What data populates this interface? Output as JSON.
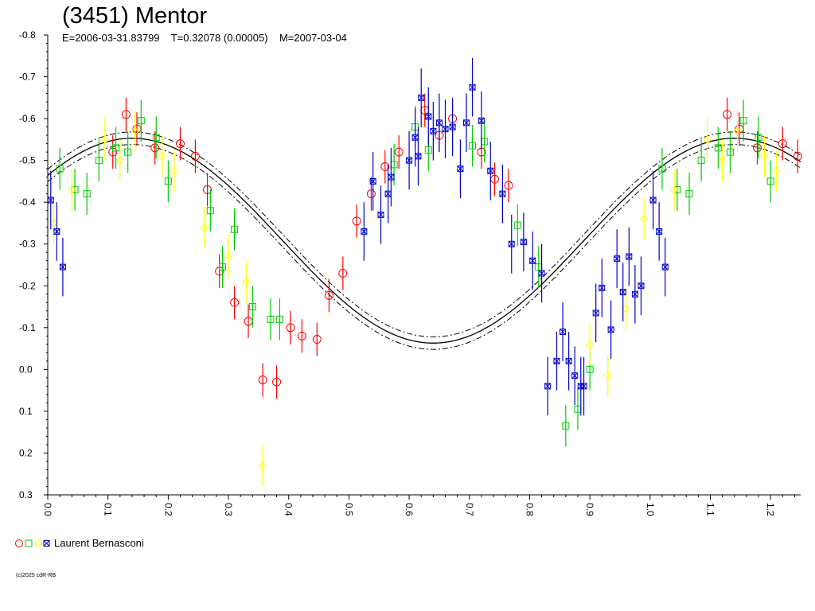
{
  "chart_data": {
    "type": "scatter",
    "title": "(3451) Mentor",
    "subtitle": "E=2006-03-31.83799    T=0.32078 (0.00005)    M=2007-03-04",
    "x_ticks": [
      "0.0",
      "0.1",
      "0.2",
      "0.3",
      "0.4",
      "0.5",
      "0.6",
      "0.7",
      "0.8",
      "0.9",
      "1.0",
      "1.1",
      "1.2"
    ],
    "y_ticks": [
      "-0.8",
      "-0.7",
      "-0.6",
      "-0.5",
      "-0.4",
      "-0.3",
      "-0.2",
      "-0.1",
      "0.0",
      "0.1",
      "0.2",
      "0.3"
    ],
    "xlim": [
      0.0,
      1.25
    ],
    "ylim": [
      -0.8,
      0.3
    ],
    "y_inverted": true,
    "fit": {
      "mean": -0.308,
      "amplitude": 0.245,
      "phase_of_max": 0.14,
      "band": 0.015
    },
    "series": [
      {
        "color": "#ff0000",
        "marker": "circle",
        "points": [
          [
            0.108,
            -0.52,
            0.04
          ],
          [
            0.13,
            -0.61,
            0.04
          ],
          [
            0.148,
            -0.575,
            0.04
          ],
          [
            0.178,
            -0.53,
            0.04
          ],
          [
            0.22,
            -0.54,
            0.04
          ],
          [
            0.245,
            -0.51,
            0.04
          ],
          [
            0.265,
            -0.43,
            0.04
          ],
          [
            0.285,
            -0.235,
            0.04
          ],
          [
            0.31,
            -0.16,
            0.04
          ],
          [
            0.333,
            -0.115,
            0.04
          ],
          [
            0.357,
            0.025,
            0.04
          ],
          [
            0.38,
            0.03,
            0.04
          ],
          [
            0.403,
            -0.1,
            0.04
          ],
          [
            0.422,
            -0.08,
            0.04
          ],
          [
            0.447,
            -0.072,
            0.04
          ],
          [
            0.467,
            -0.177,
            0.04
          ],
          [
            0.49,
            -0.23,
            0.04
          ],
          [
            0.513,
            -0.355,
            0.04
          ],
          [
            0.537,
            -0.42,
            0.04
          ],
          [
            0.56,
            -0.485,
            0.04
          ],
          [
            0.583,
            -0.52,
            0.04
          ],
          [
            0.626,
            -0.62,
            0.04
          ],
          [
            0.65,
            -0.56,
            0.04
          ],
          [
            0.672,
            -0.6,
            0.04
          ],
          [
            0.72,
            -0.52,
            0.04
          ],
          [
            0.742,
            -0.455,
            0.04
          ],
          [
            0.765,
            -0.44,
            0.04
          ],
          [
            1.128,
            -0.61,
            0.04
          ],
          [
            1.148,
            -0.575,
            0.04
          ],
          [
            1.178,
            -0.53,
            0.04
          ],
          [
            1.22,
            -0.54,
            0.04
          ],
          [
            1.245,
            -0.51,
            0.04
          ]
        ]
      },
      {
        "color": "#00cc00",
        "marker": "square",
        "points": [
          [
            0.02,
            -0.48,
            0.05
          ],
          [
            0.045,
            -0.43,
            0.05
          ],
          [
            0.065,
            -0.42,
            0.05
          ],
          [
            0.085,
            -0.5,
            0.05
          ],
          [
            0.113,
            -0.53,
            0.05
          ],
          [
            0.133,
            -0.52,
            0.05
          ],
          [
            0.155,
            -0.595,
            0.05
          ],
          [
            0.18,
            -0.555,
            0.05
          ],
          [
            0.2,
            -0.45,
            0.05
          ],
          [
            0.27,
            -0.38,
            0.05
          ],
          [
            0.29,
            -0.245,
            0.05
          ],
          [
            0.31,
            -0.335,
            0.05
          ],
          [
            0.34,
            -0.15,
            0.05
          ],
          [
            0.37,
            -0.12,
            0.05
          ],
          [
            0.385,
            -0.12,
            0.05
          ],
          [
            0.575,
            -0.49,
            0.05
          ],
          [
            0.61,
            -0.58,
            0.05
          ],
          [
            0.632,
            -0.525,
            0.05
          ],
          [
            0.705,
            -0.535,
            0.05
          ],
          [
            0.725,
            -0.545,
            0.05
          ],
          [
            0.78,
            -0.345,
            0.05
          ],
          [
            0.815,
            -0.245,
            0.05
          ],
          [
            0.86,
            0.135,
            0.05
          ],
          [
            0.88,
            0.095,
            0.05
          ],
          [
            0.9,
            0.0,
            0.05
          ],
          [
            1.02,
            -0.48,
            0.05
          ],
          [
            1.045,
            -0.43,
            0.05
          ],
          [
            1.065,
            -0.42,
            0.05
          ],
          [
            1.085,
            -0.5,
            0.05
          ],
          [
            1.113,
            -0.53,
            0.05
          ],
          [
            1.133,
            -0.52,
            0.05
          ],
          [
            1.155,
            -0.595,
            0.05
          ],
          [
            1.18,
            -0.555,
            0.05
          ],
          [
            1.2,
            -0.45,
            0.05
          ]
        ]
      },
      {
        "color": "#ffff00",
        "marker": "diamond",
        "points": [
          [
            0.01,
            -0.35,
            0.05
          ],
          [
            0.04,
            -0.43,
            0.05
          ],
          [
            0.095,
            -0.55,
            0.05
          ],
          [
            0.12,
            -0.5,
            0.05
          ],
          [
            0.145,
            -0.57,
            0.05
          ],
          [
            0.19,
            -0.51,
            0.05
          ],
          [
            0.21,
            -0.475,
            0.05
          ],
          [
            0.26,
            -0.34,
            0.05
          ],
          [
            0.3,
            -0.27,
            0.05
          ],
          [
            0.33,
            -0.21,
            0.05
          ],
          [
            0.357,
            0.23,
            0.05
          ],
          [
            0.9,
            -0.06,
            0.05
          ],
          [
            0.93,
            0.015,
            0.05
          ],
          [
            0.96,
            -0.145,
            0.05
          ],
          [
            0.99,
            -0.36,
            0.05
          ],
          [
            1.04,
            -0.43,
            0.05
          ],
          [
            1.095,
            -0.55,
            0.05
          ],
          [
            1.12,
            -0.5,
            0.05
          ],
          [
            1.145,
            -0.57,
            0.05
          ],
          [
            1.19,
            -0.51,
            0.05
          ],
          [
            1.21,
            -0.475,
            0.05
          ]
        ]
      },
      {
        "color": "#0000cc",
        "marker": "box-x",
        "points": [
          [
            0.005,
            -0.405,
            0.07
          ],
          [
            0.015,
            -0.33,
            0.07
          ],
          [
            0.025,
            -0.245,
            0.07
          ],
          [
            0.525,
            -0.33,
            0.07
          ],
          [
            0.54,
            -0.45,
            0.07
          ],
          [
            0.553,
            -0.37,
            0.07
          ],
          [
            0.565,
            -0.42,
            0.07
          ],
          [
            0.57,
            -0.46,
            0.07
          ],
          [
            0.6,
            -0.5,
            0.07
          ],
          [
            0.61,
            -0.555,
            0.07
          ],
          [
            0.615,
            -0.51,
            0.07
          ],
          [
            0.62,
            -0.65,
            0.07
          ],
          [
            0.632,
            -0.605,
            0.07
          ],
          [
            0.64,
            -0.57,
            0.07
          ],
          [
            0.65,
            -0.59,
            0.07
          ],
          [
            0.66,
            -0.575,
            0.07
          ],
          [
            0.672,
            -0.58,
            0.07
          ],
          [
            0.685,
            -0.48,
            0.07
          ],
          [
            0.695,
            -0.59,
            0.07
          ],
          [
            0.705,
            -0.675,
            0.07
          ],
          [
            0.72,
            -0.595,
            0.07
          ],
          [
            0.735,
            -0.475,
            0.07
          ],
          [
            0.755,
            -0.42,
            0.07
          ],
          [
            0.77,
            -0.3,
            0.07
          ],
          [
            0.79,
            -0.305,
            0.07
          ],
          [
            0.805,
            -0.26,
            0.07
          ],
          [
            0.82,
            -0.23,
            0.07
          ],
          [
            0.83,
            0.04,
            0.07
          ],
          [
            0.845,
            -0.02,
            0.07
          ],
          [
            0.855,
            -0.09,
            0.07
          ],
          [
            0.865,
            -0.02,
            0.07
          ],
          [
            0.875,
            0.015,
            0.07
          ],
          [
            0.885,
            0.04,
            0.07
          ],
          [
            0.89,
            0.04,
            0.07
          ],
          [
            0.91,
            -0.135,
            0.07
          ],
          [
            0.92,
            -0.195,
            0.07
          ],
          [
            0.935,
            -0.095,
            0.07
          ],
          [
            0.945,
            -0.265,
            0.07
          ],
          [
            0.955,
            -0.185,
            0.07
          ],
          [
            0.965,
            -0.27,
            0.07
          ],
          [
            0.975,
            -0.18,
            0.07
          ],
          [
            0.985,
            -0.2,
            0.07
          ],
          [
            1.005,
            -0.405,
            0.07
          ],
          [
            1.015,
            -0.33,
            0.07
          ],
          [
            1.025,
            -0.245,
            0.07
          ]
        ]
      }
    ]
  },
  "legend": {
    "label": "Laurent Bernasconi"
  },
  "footer": {
    "copyright": "(c)2025 cdR-RB"
  }
}
